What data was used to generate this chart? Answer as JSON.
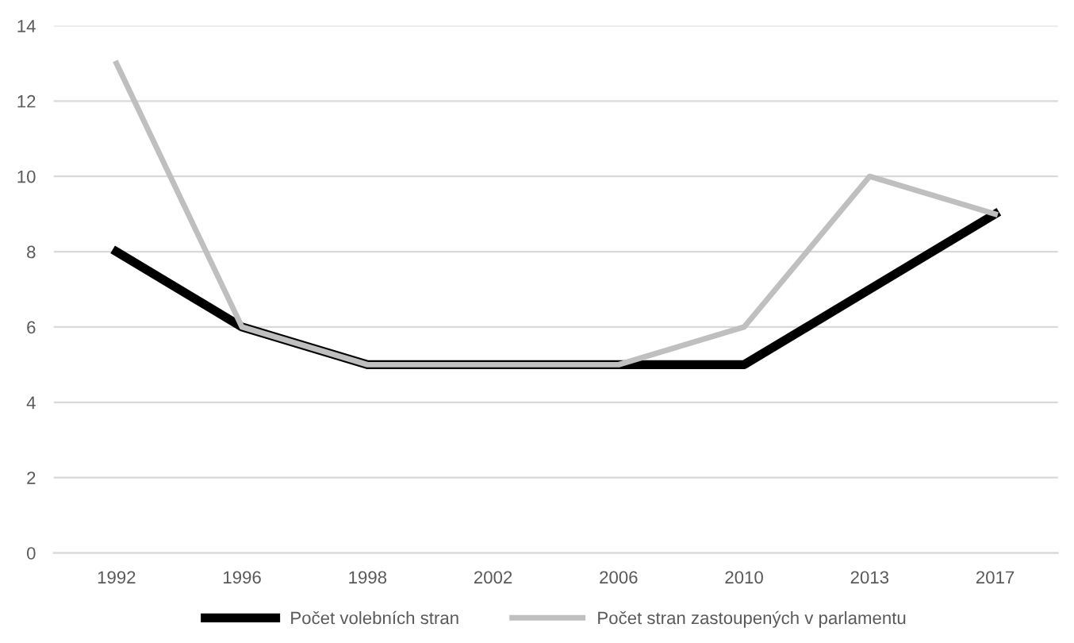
{
  "chart_data": {
    "type": "line",
    "categories": [
      "1992",
      "1996",
      "1998",
      "2002",
      "2006",
      "2010",
      "2013",
      "2017"
    ],
    "series": [
      {
        "name": "Počet volebních stran",
        "color": "#000000",
        "values": [
          8,
          6,
          5,
          5,
          5,
          5,
          7,
          9
        ]
      },
      {
        "name": "Počet stran zastoupených v parlamentu",
        "color": "#bfbfbf",
        "values": [
          13,
          6,
          5,
          5,
          5,
          6,
          10,
          9
        ]
      }
    ],
    "ylim": [
      0,
      14
    ],
    "yticks": [
      0,
      2,
      4,
      6,
      8,
      10,
      12,
      14
    ],
    "grid": "y",
    "legend": "bottom",
    "marker": "none",
    "line_style": "solid"
  }
}
